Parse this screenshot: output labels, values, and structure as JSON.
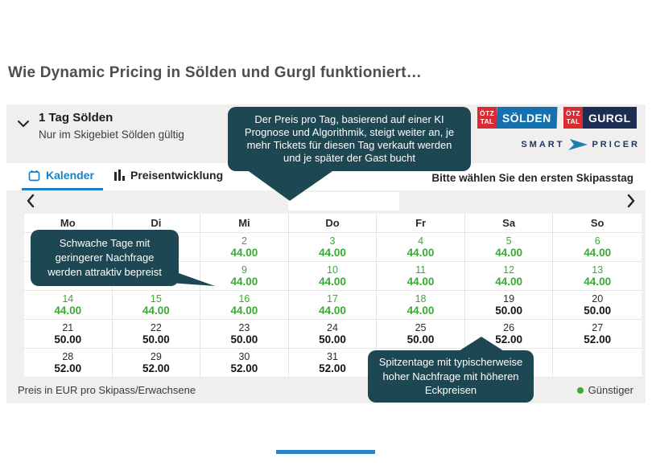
{
  "page": {
    "title": "Wie Dynamic Pricing in Sölden und Gurgl funktioniert…"
  },
  "widget": {
    "product": {
      "name": "1 Tag Sölden",
      "subtitle": "Nur im Skigebiet Sölden gültig"
    },
    "brand": {
      "soelden": {
        "prefix_top": "ÖTZ",
        "prefix_bottom": "TAL",
        "name": "SÖLDEN"
      },
      "gurgl": {
        "prefix_top": "ÖTZ",
        "prefix_bottom": "TAL",
        "name": "GURGL"
      },
      "smartpricer": {
        "word1": "SMART",
        "word2": "PRICER"
      }
    },
    "tabs": [
      {
        "label": "Kalender",
        "icon": "calendar-icon",
        "active": true
      },
      {
        "label": "Preisentwicklung",
        "icon": "bar-chart-icon",
        "active": false
      }
    ],
    "prompt": "Bitte wählen Sie den ersten Skipasstag",
    "tooltips": {
      "top": "Der Preis pro Tag, basierend auf einer KI Prognose und Algorithmik, steigt weiter an, je mehr Tickets für diesen Tag verkauft werden und je später der Gast bucht",
      "left": "Schwache Tage mit geringerer Nachfrage werden attraktiv bepreist",
      "bottom": "Spitzentage mit typischerweise hoher Nachfrage mit höheren Eckpreisen"
    },
    "calendar": {
      "weekdays": [
        "Mo",
        "Di",
        "Mi",
        "Do",
        "Fr",
        "Sa",
        "So"
      ],
      "weeks": [
        [
          null,
          null,
          {
            "day": "2",
            "price": "44.00",
            "tone": "low"
          },
          {
            "day": "3",
            "price": "44.00",
            "tone": "low"
          },
          {
            "day": "4",
            "price": "44.00",
            "tone": "low"
          },
          {
            "day": "5",
            "price": "44.00",
            "tone": "low"
          },
          {
            "day": "6",
            "price": "44.00",
            "tone": "low"
          }
        ],
        [
          null,
          null,
          {
            "day": "9",
            "price": "44.00",
            "tone": "low"
          },
          {
            "day": "10",
            "price": "44.00",
            "tone": "low"
          },
          {
            "day": "11",
            "price": "44.00",
            "tone": "low"
          },
          {
            "day": "12",
            "price": "44.00",
            "tone": "low"
          },
          {
            "day": "13",
            "price": "44.00",
            "tone": "low"
          }
        ],
        [
          {
            "day": "14",
            "price": "44.00",
            "tone": "low"
          },
          {
            "day": "15",
            "price": "44.00",
            "tone": "low"
          },
          {
            "day": "16",
            "price": "44.00",
            "tone": "low"
          },
          {
            "day": "17",
            "price": "44.00",
            "tone": "low"
          },
          {
            "day": "18",
            "price": "44.00",
            "tone": "low"
          },
          {
            "day": "19",
            "price": "50.00",
            "tone": "base"
          },
          {
            "day": "20",
            "price": "50.00",
            "tone": "base"
          }
        ],
        [
          {
            "day": "21",
            "price": "50.00",
            "tone": "base"
          },
          {
            "day": "22",
            "price": "50.00",
            "tone": "base"
          },
          {
            "day": "23",
            "price": "50.00",
            "tone": "base"
          },
          {
            "day": "24",
            "price": "50.00",
            "tone": "base"
          },
          {
            "day": "25",
            "price": "50.00",
            "tone": "base"
          },
          {
            "day": "26",
            "price": "52.00",
            "tone": "base"
          },
          {
            "day": "27",
            "price": "52.00",
            "tone": "base"
          }
        ],
        [
          {
            "day": "28",
            "price": "52.00",
            "tone": "base"
          },
          {
            "day": "29",
            "price": "52.00",
            "tone": "base"
          },
          {
            "day": "30",
            "price": "52.00",
            "tone": "base"
          },
          {
            "day": "31",
            "price": "52.00",
            "tone": "base"
          },
          null,
          null,
          null
        ]
      ]
    },
    "footer": {
      "note": "Preis in EUR pro Skipass/Erwachsene",
      "legend": "Günstiger"
    },
    "colors": {
      "low_price": "#3aa935",
      "accent_blue": "#1d7fc4",
      "tooltip_bg": "#1c4753",
      "oetztal_red": "#dc2a33",
      "soelden_blue": "#1470ae",
      "gurgl_navy": "#1d2c52"
    }
  }
}
